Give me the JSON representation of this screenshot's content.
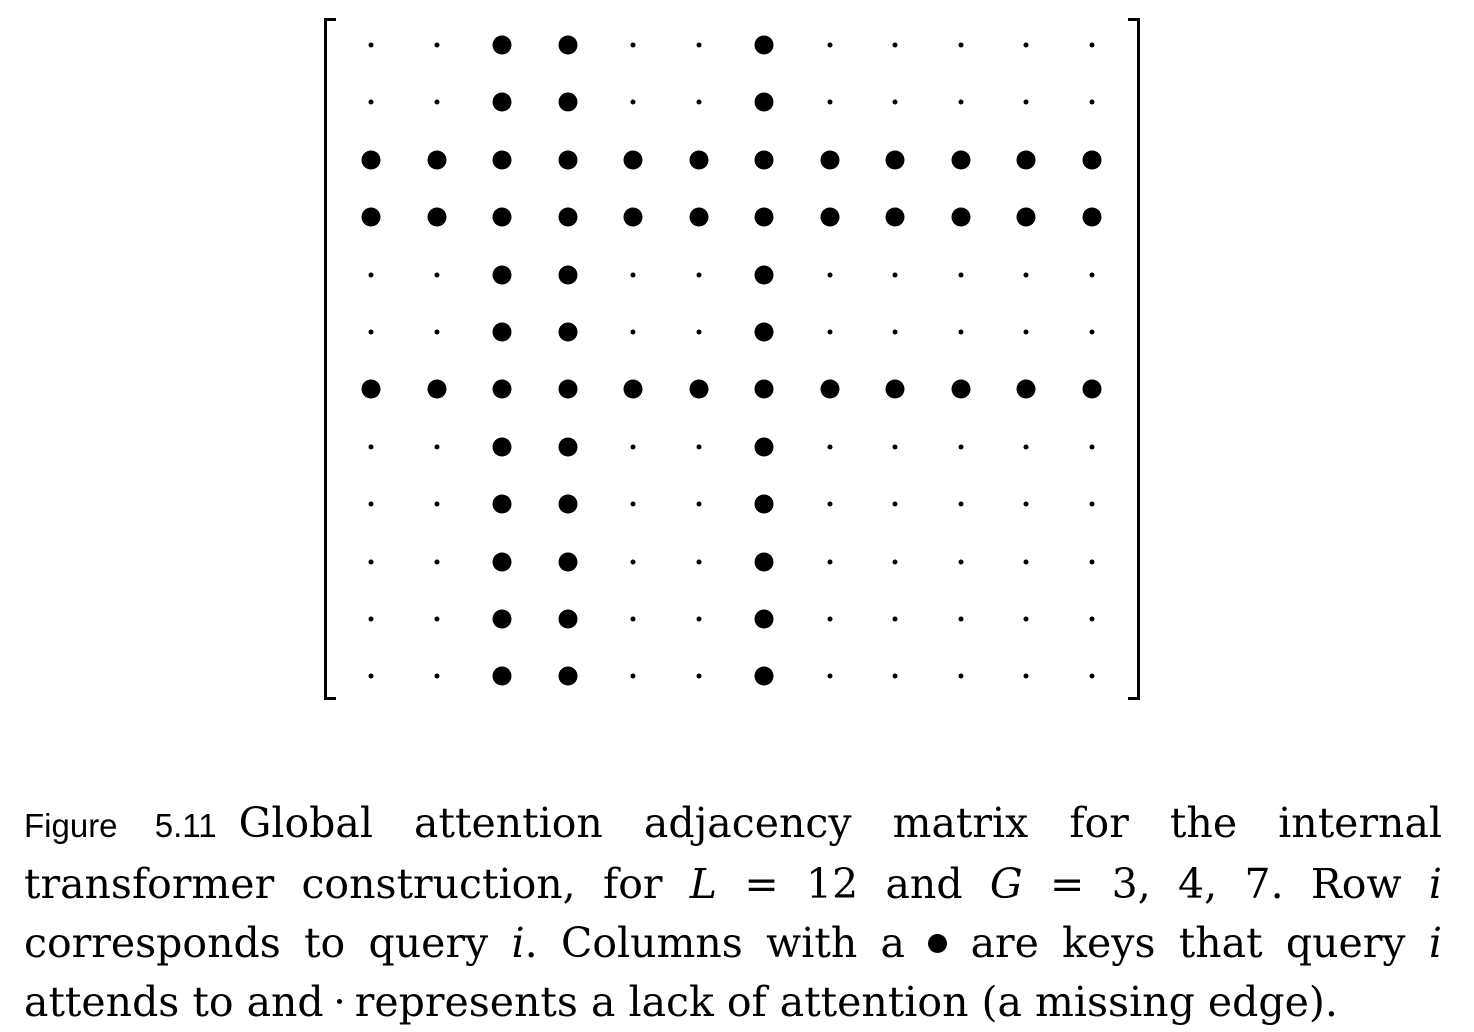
{
  "figure": {
    "label": "Figure 5.11",
    "size": 12,
    "global_indices": [
      3,
      4,
      7
    ],
    "legend": {
      "edge": "●",
      "no_edge": "·"
    }
  },
  "caption": {
    "text_1": "Global attention adjacency matrix for the internal transformer construction, for ",
    "L": "L",
    "eq_1": " = 12 and ",
    "G": "G",
    "eq_2": " = 3, 4, 7. Row ",
    "i_1": "i",
    "text_2": " corresponds to query ",
    "i_2": "i",
    "text_3": ". Columns with a ",
    "text_4": " are keys that query ",
    "i_3": "i",
    "text_5": " attends to and ",
    "text_6": " represents a lack of attention (a missing edge)."
  }
}
